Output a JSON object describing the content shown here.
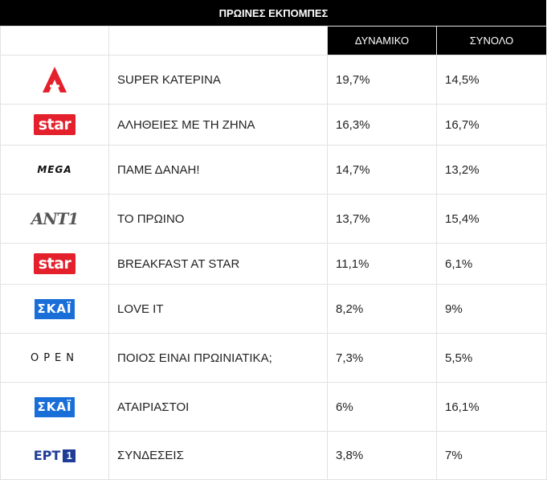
{
  "title": "ΠΡΩΙΝΕΣ ΕΚΠΟΜΠΕΣ",
  "headers": {
    "show": "",
    "dynamic": "ΔΥΝΑΜΙΚΟ",
    "total": "ΣΥΝΟΛΟ"
  },
  "brand_colors": {
    "alpha": "#e3202b",
    "star": "#e3202b",
    "skai": "#1a6ed8",
    "ert": "#1f3c96"
  },
  "logo_text": {
    "star": "star",
    "mega": "MEGA",
    "ant1": "ΑΝΤ1",
    "skai": "ΣΚΑΪ",
    "open": "OPEN",
    "ert": "ΕΡΤ",
    "ert_num": "1"
  },
  "rows": [
    {
      "logo": "alpha-logo-icon",
      "show": "SUPER ΚΑΤΕΡΙΝΑ",
      "dynamic": "19,7%",
      "total": "14,5%"
    },
    {
      "logo": "star-logo",
      "show": "ΑΛΗΘΕΙΕΣ ΜΕ ΤΗ ΖΗΝΑ",
      "dynamic": "16,3%",
      "total": "16,7%"
    },
    {
      "logo": "mega-logo",
      "show": "ΠΑΜΕ ΔΑΝΑΗ!",
      "dynamic": "14,7%",
      "total": "13,2%"
    },
    {
      "logo": "ant1-logo",
      "show": "ΤΟ ΠΡΩΙΝΟ",
      "dynamic": "13,7%",
      "total": "15,4%"
    },
    {
      "logo": "star-logo",
      "show": "BREAKFAST AT STAR",
      "dynamic": "11,1%",
      "total": "6,1%"
    },
    {
      "logo": "skai-logo",
      "show": "LOVE IT",
      "dynamic": "8,2%",
      "total": "9%"
    },
    {
      "logo": "open-logo",
      "show": "ΠΟΙΟΣ ΕΙΝΑΙ ΠΡΩΙΝΙΑΤΙΚΑ;",
      "dynamic": "7,3%",
      "total": "5,5%"
    },
    {
      "logo": "skai-logo",
      "show": "ΑΤΑΙΡΙΑΣΤΟΙ",
      "dynamic": "6%",
      "total": "16,1%"
    },
    {
      "logo": "ert1-logo",
      "show": "ΣΥΝΔΕΣΕΙΣ",
      "dynamic": "3,8%",
      "total": "7%"
    }
  ]
}
